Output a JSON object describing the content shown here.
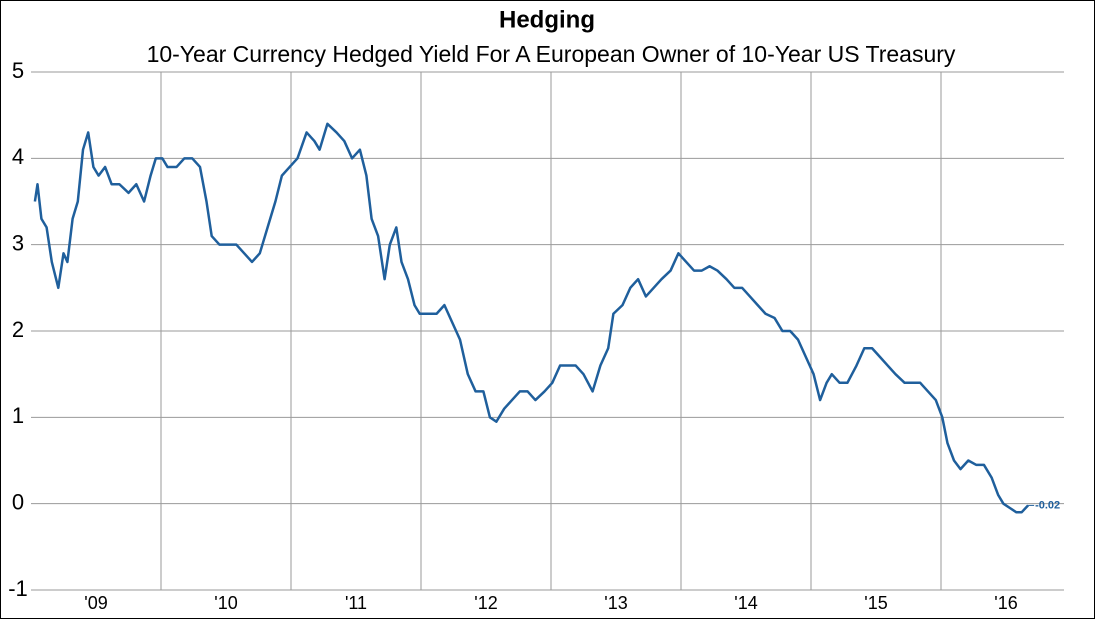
{
  "chart_data": {
    "type": "line",
    "title": "Hedging",
    "subtitle": "10-Year Currency Hedged Yield For A European Owner of 10-Year US Treasury",
    "x": [
      2009.03,
      2009.05,
      2009.08,
      2009.12,
      2009.16,
      2009.21,
      2009.25,
      2009.28,
      2009.32,
      2009.36,
      2009.4,
      2009.44,
      2009.48,
      2009.52,
      2009.57,
      2009.62,
      2009.68,
      2009.75,
      2009.81,
      2009.87,
      2009.92,
      2009.96,
      2010.01,
      2010.05,
      2010.12,
      2010.18,
      2010.24,
      2010.3,
      2010.35,
      2010.39,
      2010.45,
      2010.52,
      2010.58,
      2010.64,
      2010.7,
      2010.76,
      2010.82,
      2010.88,
      2010.93,
      2010.99,
      2011.05,
      2011.12,
      2011.18,
      2011.22,
      2011.28,
      2011.35,
      2011.41,
      2011.47,
      2011.53,
      2011.58,
      2011.62,
      2011.67,
      2011.72,
      2011.76,
      2011.81,
      2011.85,
      2011.9,
      2011.95,
      2011.99,
      2012.05,
      2012.12,
      2012.18,
      2012.24,
      2012.3,
      2012.36,
      2012.42,
      2012.48,
      2012.53,
      2012.58,
      2012.64,
      2012.7,
      2012.76,
      2012.82,
      2012.88,
      2012.95,
      2013.01,
      2013.07,
      2013.13,
      2013.19,
      2013.25,
      2013.32,
      2013.38,
      2013.44,
      2013.48,
      2013.55,
      2013.61,
      2013.67,
      2013.73,
      2013.79,
      2013.85,
      2013.92,
      2013.98,
      2014.04,
      2014.1,
      2014.16,
      2014.22,
      2014.28,
      2014.35,
      2014.41,
      2014.47,
      2014.53,
      2014.59,
      2014.65,
      2014.72,
      2014.78,
      2014.84,
      2014.9,
      2014.96,
      2015.02,
      2015.07,
      2015.12,
      2015.16,
      2015.22,
      2015.28,
      2015.35,
      2015.41,
      2015.47,
      2015.53,
      2015.59,
      2015.65,
      2015.72,
      2015.78,
      2015.84,
      2015.9,
      2015.96,
      2016.01,
      2016.05,
      2016.1,
      2016.15,
      2016.21,
      2016.27,
      2016.33,
      2016.39,
      2016.44,
      2016.48,
      2016.53,
      2016.58,
      2016.62,
      2016.67
    ],
    "values": [
      3.5,
      3.7,
      3.3,
      3.2,
      2.8,
      2.5,
      2.9,
      2.8,
      3.3,
      3.5,
      4.1,
      4.3,
      3.9,
      3.8,
      3.9,
      3.7,
      3.7,
      3.6,
      3.7,
      3.5,
      3.8,
      4.0,
      4.0,
      3.9,
      3.9,
      4.0,
      4.0,
      3.9,
      3.5,
      3.1,
      3.0,
      3.0,
      3.0,
      2.9,
      2.8,
      2.9,
      3.2,
      3.5,
      3.8,
      3.9,
      4.0,
      4.3,
      4.2,
      4.1,
      4.4,
      4.3,
      4.2,
      4.0,
      4.1,
      3.8,
      3.3,
      3.1,
      2.6,
      3.0,
      3.2,
      2.8,
      2.6,
      2.3,
      2.2,
      2.2,
      2.2,
      2.3,
      2.1,
      1.9,
      1.5,
      1.3,
      1.3,
      1.0,
      0.95,
      1.1,
      1.2,
      1.3,
      1.3,
      1.2,
      1.3,
      1.4,
      1.6,
      1.6,
      1.6,
      1.5,
      1.3,
      1.6,
      1.8,
      2.2,
      2.3,
      2.5,
      2.6,
      2.4,
      2.5,
      2.6,
      2.7,
      2.9,
      2.8,
      2.7,
      2.7,
      2.75,
      2.7,
      2.6,
      2.5,
      2.5,
      2.4,
      2.3,
      2.2,
      2.15,
      2.0,
      2.0,
      1.9,
      1.7,
      1.5,
      1.2,
      1.4,
      1.5,
      1.4,
      1.4,
      1.6,
      1.8,
      1.8,
      1.7,
      1.6,
      1.5,
      1.4,
      1.4,
      1.4,
      1.3,
      1.2,
      1.0,
      0.7,
      0.5,
      0.4,
      0.5,
      0.45,
      0.45,
      0.3,
      0.1,
      0.0,
      -0.05,
      -0.1,
      -0.1,
      -0.02
    ],
    "color": "#1f5f9c",
    "xlim": [
      2009,
      2017
    ],
    "xticks": [
      {
        "value": 2009.5,
        "label": "'09"
      },
      {
        "value": 2010.5,
        "label": "'10"
      },
      {
        "value": 2011.5,
        "label": "'11"
      },
      {
        "value": 2012.5,
        "label": "'12"
      },
      {
        "value": 2013.5,
        "label": "'13"
      },
      {
        "value": 2014.5,
        "label": "'14"
      },
      {
        "value": 2015.5,
        "label": "'15"
      },
      {
        "value": 2016.5,
        "label": "'16"
      }
    ],
    "x_gridlines": [
      2010,
      2011,
      2012,
      2013,
      2014,
      2015,
      2016
    ],
    "ylim": [
      -1,
      5
    ],
    "yticks": [
      -1,
      0,
      1,
      2,
      3,
      4,
      5
    ],
    "grid": true,
    "last_value_label": true
  }
}
